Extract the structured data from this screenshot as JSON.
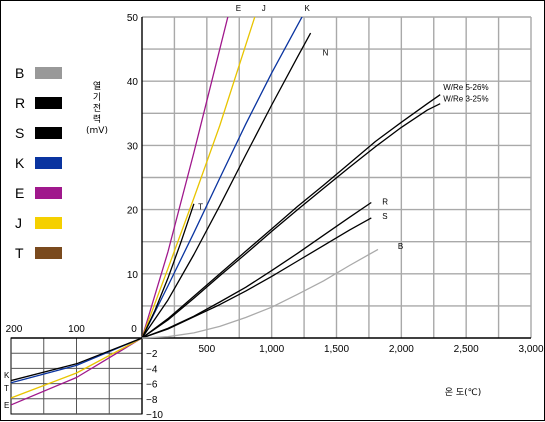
{
  "chart_data": {
    "type": "line",
    "title": "",
    "xlabel": "온 도(℃)",
    "ylabel": [
      "열",
      "기",
      "전",
      "력",
      "(mV)"
    ],
    "xlim": [
      -200,
      3000
    ],
    "ylim": [
      -10,
      50
    ],
    "x_ticks": [
      {
        "value": 500,
        "label": "500"
      },
      {
        "value": 1000,
        "label": "1,000"
      },
      {
        "value": 1500,
        "label": "1,500"
      },
      {
        "value": 2000,
        "label": "2,000"
      },
      {
        "value": 2500,
        "label": "2,500"
      },
      {
        "value": 3000,
        "label": "3,000"
      }
    ],
    "neg_x_ticks": [
      {
        "value": -200,
        "label": "200"
      },
      {
        "value": -100,
        "label": "100"
      },
      {
        "value": 0,
        "label": "0"
      }
    ],
    "y_ticks": [
      {
        "value": 10,
        "label": "10"
      },
      {
        "value": 20,
        "label": "20"
      },
      {
        "value": 30,
        "label": "30"
      },
      {
        "value": 40,
        "label": "40"
      },
      {
        "value": 50,
        "label": "50"
      }
    ],
    "neg_y_ticks": [
      {
        "value": -2,
        "label": "−2"
      },
      {
        "value": -4,
        "label": "−4"
      },
      {
        "value": -6,
        "label": "−6"
      },
      {
        "value": -8,
        "label": "−8"
      },
      {
        "value": -10,
        "label": "−10"
      }
    ],
    "grid": true,
    "legend": {
      "placement": "left",
      "entries": [
        {
          "code": "B",
          "color": "#999999"
        },
        {
          "code": "R",
          "color": "#000000"
        },
        {
          "code": "S",
          "color": "#000000"
        },
        {
          "code": "K",
          "color": "#0a34a0"
        },
        {
          "code": "E",
          "color": "#a0188c"
        },
        {
          "code": "J",
          "color": "#f5d000"
        },
        {
          "code": "T",
          "color": "#7a4a1e"
        }
      ]
    },
    "series": [
      {
        "name": "E",
        "color": "#a0188c",
        "label_at": [
          700,
          50
        ],
        "points": [
          [
            -200,
            -8.8
          ],
          [
            -100,
            -5.2
          ],
          [
            0,
            0
          ],
          [
            200,
            13.4
          ],
          [
            400,
            28.9
          ],
          [
            700,
            53.1
          ]
        ]
      },
      {
        "name": "J",
        "color": "#e8c400",
        "label_at": [
          900,
          50
        ],
        "points": [
          [
            -200,
            -7.9
          ],
          [
            -100,
            -4.6
          ],
          [
            0,
            0
          ],
          [
            200,
            10.8
          ],
          [
            400,
            21.8
          ],
          [
            600,
            33.1
          ],
          [
            900,
            51.9
          ]
        ]
      },
      {
        "name": "K",
        "color": "#0a34a0",
        "label_at": [
          1230,
          50
        ],
        "points": [
          [
            -200,
            -5.9
          ],
          [
            -100,
            -3.6
          ],
          [
            0,
            0
          ],
          [
            200,
            8.1
          ],
          [
            400,
            16.4
          ],
          [
            600,
            24.9
          ],
          [
            800,
            33.3
          ],
          [
            1000,
            41.3
          ],
          [
            1250,
            50.6
          ]
        ]
      },
      {
        "name": "N",
        "color": "#000000",
        "label_at": [
          1370,
          44.5
        ],
        "points": [
          [
            0,
            0
          ],
          [
            200,
            5.9
          ],
          [
            400,
            13.0
          ],
          [
            600,
            20.6
          ],
          [
            800,
            28.5
          ],
          [
            1000,
            36.3
          ],
          [
            1200,
            43.8
          ],
          [
            1300,
            47.5
          ]
        ]
      },
      {
        "name": "T",
        "color": "#000000",
        "label_at": [
          410,
          20.5
        ],
        "points": [
          [
            -200,
            -5.6
          ],
          [
            -100,
            -3.4
          ],
          [
            0,
            0
          ],
          [
            100,
            4.3
          ],
          [
            200,
            9.3
          ],
          [
            300,
            14.9
          ],
          [
            400,
            20.9
          ]
        ]
      },
      {
        "name": "W/Re 5-26%",
        "color": "#000000",
        "label_at": [
          2300,
          39.1
        ],
        "points": [
          [
            0,
            0
          ],
          [
            200,
            3.0
          ],
          [
            400,
            6.5
          ],
          [
            600,
            10.0
          ],
          [
            800,
            13.5
          ],
          [
            1000,
            17.0
          ],
          [
            1200,
            20.5
          ],
          [
            1400,
            23.8
          ],
          [
            1600,
            27.2
          ],
          [
            1800,
            30.6
          ],
          [
            2000,
            33.6
          ],
          [
            2200,
            36.5
          ],
          [
            2300,
            37.9
          ]
        ]
      },
      {
        "name": "W/Re 3-25%",
        "color": "#000000",
        "label_at": [
          2300,
          37.3
        ],
        "points": [
          [
            0,
            0
          ],
          [
            200,
            2.8
          ],
          [
            400,
            6.2
          ],
          [
            600,
            9.7
          ],
          [
            800,
            13.1
          ],
          [
            1000,
            16.6
          ],
          [
            1200,
            20.0
          ],
          [
            1400,
            23.3
          ],
          [
            1600,
            26.6
          ],
          [
            1800,
            29.8
          ],
          [
            2000,
            32.8
          ],
          [
            2200,
            35.5
          ],
          [
            2300,
            36.5
          ]
        ]
      },
      {
        "name": "R",
        "color": "#000000",
        "label_at": [
          1830,
          21.3
        ],
        "points": [
          [
            0,
            0
          ],
          [
            200,
            1.5
          ],
          [
            400,
            3.4
          ],
          [
            600,
            5.6
          ],
          [
            800,
            7.9
          ],
          [
            1000,
            10.5
          ],
          [
            1200,
            13.2
          ],
          [
            1400,
            16.0
          ],
          [
            1600,
            18.8
          ],
          [
            1768,
            21.1
          ]
        ]
      },
      {
        "name": "S",
        "color": "#000000",
        "label_at": [
          1830,
          19.0
        ],
        "points": [
          [
            0,
            0
          ],
          [
            200,
            1.4
          ],
          [
            400,
            3.3
          ],
          [
            600,
            5.2
          ],
          [
            800,
            7.3
          ],
          [
            1000,
            9.6
          ],
          [
            1200,
            12.0
          ],
          [
            1400,
            14.4
          ],
          [
            1600,
            16.8
          ],
          [
            1768,
            18.7
          ]
        ]
      },
      {
        "name": "B",
        "color": "#aaaaaa",
        "label_at": [
          1950,
          14.3
        ],
        "points": [
          [
            0,
            0
          ],
          [
            200,
            0.2
          ],
          [
            400,
            0.8
          ],
          [
            600,
            1.8
          ],
          [
            800,
            3.2
          ],
          [
            1000,
            4.8
          ],
          [
            1200,
            6.8
          ],
          [
            1400,
            8.9
          ],
          [
            1600,
            11.3
          ],
          [
            1820,
            13.8
          ]
        ]
      }
    ]
  }
}
